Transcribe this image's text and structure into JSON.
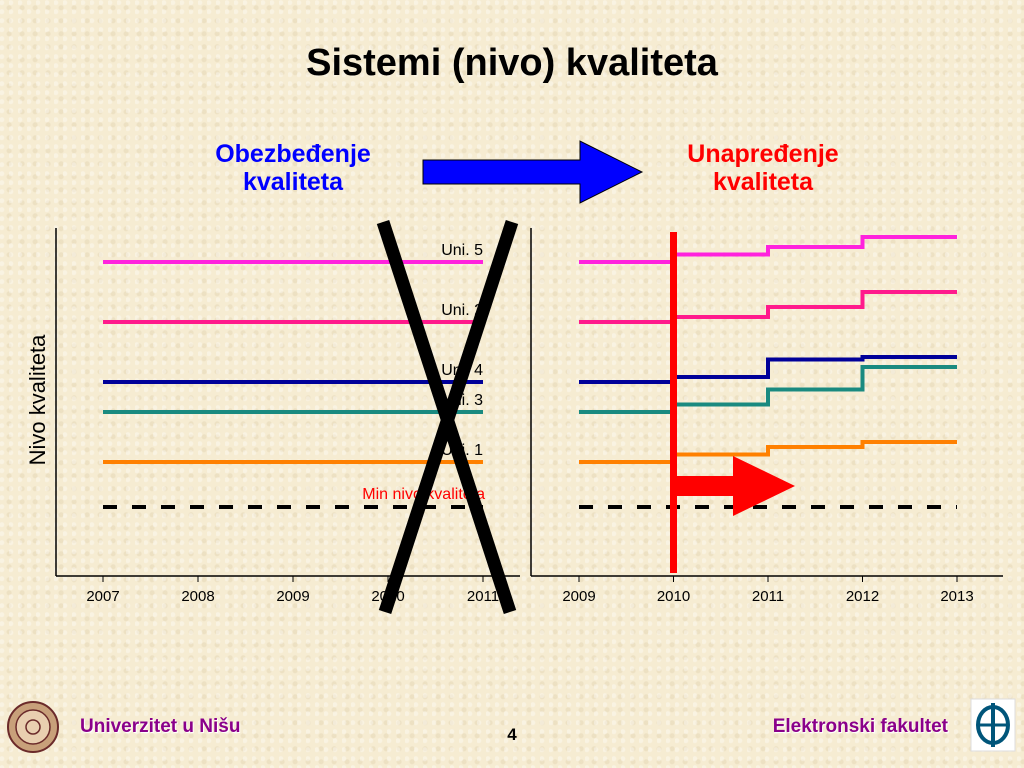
{
  "slide": {
    "title": "Sistemi (nivo) kvaliteta",
    "left_heading": [
      "Obezbeđenje",
      "kvaliteta"
    ],
    "right_heading": [
      "Unapređenje",
      "kvaliteta"
    ],
    "footer_left": "Univerzitet u Nišu",
    "footer_right": "Elektronski fakultet",
    "page_number": "4"
  },
  "chart_data": [
    {
      "type": "line",
      "panel": "left",
      "ylabel": "Nivo kvaliteta",
      "x_ticks": [
        "2007",
        "2008",
        "2009",
        "2010",
        "2011"
      ],
      "xlim": [
        2007,
        2011
      ],
      "series": [
        {
          "name": "Uni. 5",
          "color": "#ff22dd",
          "level": 4.9
        },
        {
          "name": "Uni. 2",
          "color": "#ff1a8c",
          "level": 3.7
        },
        {
          "name": "Uni. 4",
          "color": "#000099",
          "level": 2.5
        },
        {
          "name": "Uni. 3",
          "color": "#1a8a80",
          "level": 1.9
        },
        {
          "name": "Uni. 1",
          "color": "#ff8000",
          "level": 0.9
        }
      ],
      "threshold": {
        "name": "Min nivo kvaliteta",
        "level": 0.0,
        "style": "dashed",
        "color": "#ff0000"
      },
      "annotation": "crossed-out (large black X)"
    },
    {
      "type": "line",
      "panel": "right",
      "x_ticks": [
        "2009",
        "2010",
        "2011",
        "2012",
        "2013"
      ],
      "xlim": [
        2009,
        2013
      ],
      "marker_year": 2010,
      "marker_color": "#ff0000",
      "series": [
        {
          "color": "#ff22dd",
          "steps": [
            [
              2009,
              4.9
            ],
            [
              2010,
              5.05
            ],
            [
              2011,
              5.2
            ],
            [
              2012,
              5.4
            ],
            [
              2013,
              5.4
            ]
          ]
        },
        {
          "color": "#ff1a8c",
          "steps": [
            [
              2009,
              3.7
            ],
            [
              2010,
              3.8
            ],
            [
              2011,
              4.0
            ],
            [
              2012,
              4.3
            ],
            [
              2013,
              4.3
            ]
          ]
        },
        {
          "color": "#000099",
          "steps": [
            [
              2009,
              2.5
            ],
            [
              2010,
              2.6
            ],
            [
              2011,
              2.95
            ],
            [
              2012,
              3.0
            ],
            [
              2013,
              3.0
            ]
          ]
        },
        {
          "color": "#1a8a80",
          "steps": [
            [
              2009,
              1.9
            ],
            [
              2010,
              2.05
            ],
            [
              2011,
              2.35
            ],
            [
              2012,
              2.8
            ],
            [
              2013,
              2.8
            ]
          ]
        },
        {
          "color": "#ff8000",
          "steps": [
            [
              2009,
              0.9
            ],
            [
              2010,
              1.05
            ],
            [
              2011,
              1.2
            ],
            [
              2012,
              1.3
            ],
            [
              2013,
              1.3
            ]
          ]
        }
      ],
      "threshold": {
        "level": 0.0,
        "style": "dashed"
      }
    }
  ]
}
